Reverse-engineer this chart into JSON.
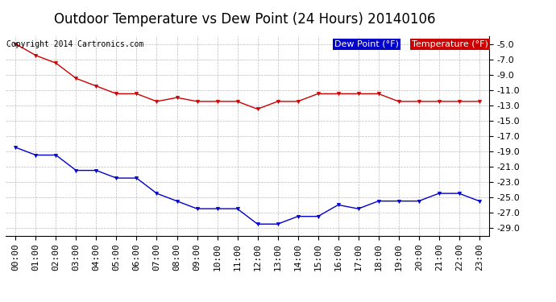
{
  "title": "Outdoor Temperature vs Dew Point (24 Hours) 20140106",
  "copyright": "Copyright 2014 Cartronics.com",
  "x_labels": [
    "00:00",
    "01:00",
    "02:00",
    "03:00",
    "04:00",
    "05:00",
    "06:00",
    "07:00",
    "08:00",
    "09:00",
    "10:00",
    "11:00",
    "12:00",
    "13:00",
    "14:00",
    "15:00",
    "16:00",
    "17:00",
    "18:00",
    "19:00",
    "20:00",
    "21:00",
    "22:00",
    "23:00"
  ],
  "temperature": [
    -5.0,
    -6.5,
    -7.5,
    -9.5,
    -10.5,
    -11.5,
    -11.5,
    -12.5,
    -12.0,
    -12.5,
    -12.5,
    -12.5,
    -13.5,
    -12.5,
    -12.5,
    -11.5,
    -11.5,
    -11.5,
    -11.5,
    -12.5,
    -12.5,
    -12.5,
    -12.5,
    -12.5
  ],
  "dew_point": [
    -18.5,
    -19.5,
    -19.5,
    -21.5,
    -21.5,
    -22.5,
    -22.5,
    -24.5,
    -25.5,
    -26.5,
    -26.5,
    -26.5,
    -28.5,
    -28.5,
    -27.5,
    -27.5,
    -26.0,
    -26.5,
    -25.5,
    -25.5,
    -25.5,
    -24.5,
    -24.5,
    -25.5
  ],
  "temp_color": "#cc0000",
  "dew_color": "#0000cc",
  "ylim_min": -30.0,
  "ylim_max": -4.0,
  "yticks": [
    -5.0,
    -7.0,
    -9.0,
    -11.0,
    -13.0,
    -15.0,
    -17.0,
    -19.0,
    -21.0,
    -23.0,
    -25.0,
    -27.0,
    -29.0
  ],
  "bg_color": "#ffffff",
  "grid_color": "#aaaaaa",
  "legend_dew_bg": "#0000cc",
  "legend_temp_bg": "#cc0000",
  "legend_text_color": "#ffffff",
  "title_fontsize": 12,
  "copyright_fontsize": 7,
  "tick_fontsize": 8,
  "legend_fontsize": 8
}
